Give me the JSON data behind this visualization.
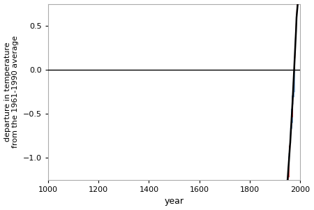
{
  "xlabel": "year",
  "ylabel": "departure in temperature\nfrom the 1961-1990 average",
  "xlim": [
    1000,
    2000
  ],
  "ylim": [
    -1.25,
    0.75
  ],
  "yticks": [
    -1.0,
    -0.5,
    0.0,
    0.5
  ],
  "xticks": [
    1000,
    1200,
    1400,
    1600,
    1800,
    2000
  ],
  "blue_color": "#5588bb",
  "red_color": "#cc2222",
  "black_color": "#000000",
  "zero_line_color": "#000000",
  "background_color": "#ffffff",
  "border_color": "#aaaaaa",
  "seed": 42,
  "smooth_window": 30,
  "proxy_end_year": 1980,
  "instrument_start_year": 1856
}
